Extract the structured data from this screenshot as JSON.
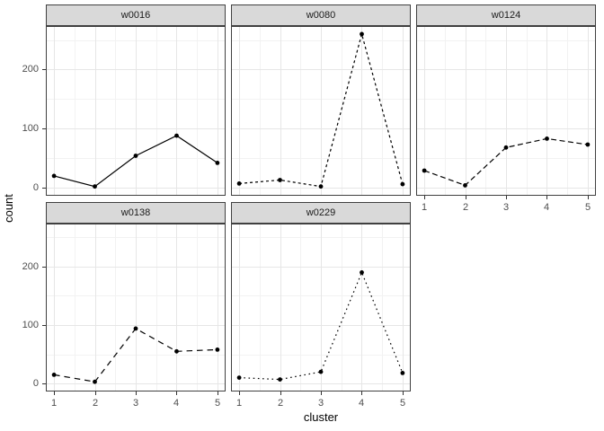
{
  "chart_data": {
    "type": "line",
    "title": "",
    "xlabel": "cluster",
    "ylabel": "count",
    "facet_layout": "3 columns x 2 rows, facets: w0016, w0080, w0124 (top); w0138, w0229 (bottom)",
    "x": [
      1,
      2,
      3,
      4,
      5
    ],
    "x_ticks": [
      1,
      2,
      3,
      4,
      5
    ],
    "y_ticks": [
      0,
      100,
      200
    ],
    "xlim": [
      0.8,
      5.2
    ],
    "ylim": [
      -13.6,
      273.6
    ],
    "grid": "major and minor gridlines on, light gray, white panel background",
    "legend_position": "none",
    "series": [
      {
        "name": "w0016",
        "linetype": "solid",
        "dash": "",
        "values": [
          20,
          2,
          54,
          88,
          42
        ]
      },
      {
        "name": "w0080",
        "linetype": "dashed-22",
        "dash": "3 3",
        "values": [
          7,
          13,
          2,
          260,
          6
        ]
      },
      {
        "name": "w0124",
        "linetype": "dashed-42",
        "dash": "6 3.5",
        "values": [
          29,
          4,
          68,
          83,
          73
        ]
      },
      {
        "name": "w0138",
        "linetype": "dashed-44",
        "dash": "6.5 5",
        "values": [
          15,
          3,
          94,
          55,
          58
        ]
      },
      {
        "name": "w0229",
        "linetype": "dotted-13",
        "dash": "1.6 3.6",
        "values": [
          10,
          7,
          20,
          190,
          18
        ]
      }
    ],
    "colors": {
      "line": "#000000",
      "point": "#000000",
      "strip_bg": "#d9d9d9",
      "strip_text": "#1a1a1a",
      "panel_border": "#404040",
      "panel_bg": "#ffffff",
      "grid_major": "#e6e6e6",
      "grid_minor": "#f2f2f2",
      "tick_label": "#4d4d4d",
      "axis_title": "#000000"
    }
  }
}
